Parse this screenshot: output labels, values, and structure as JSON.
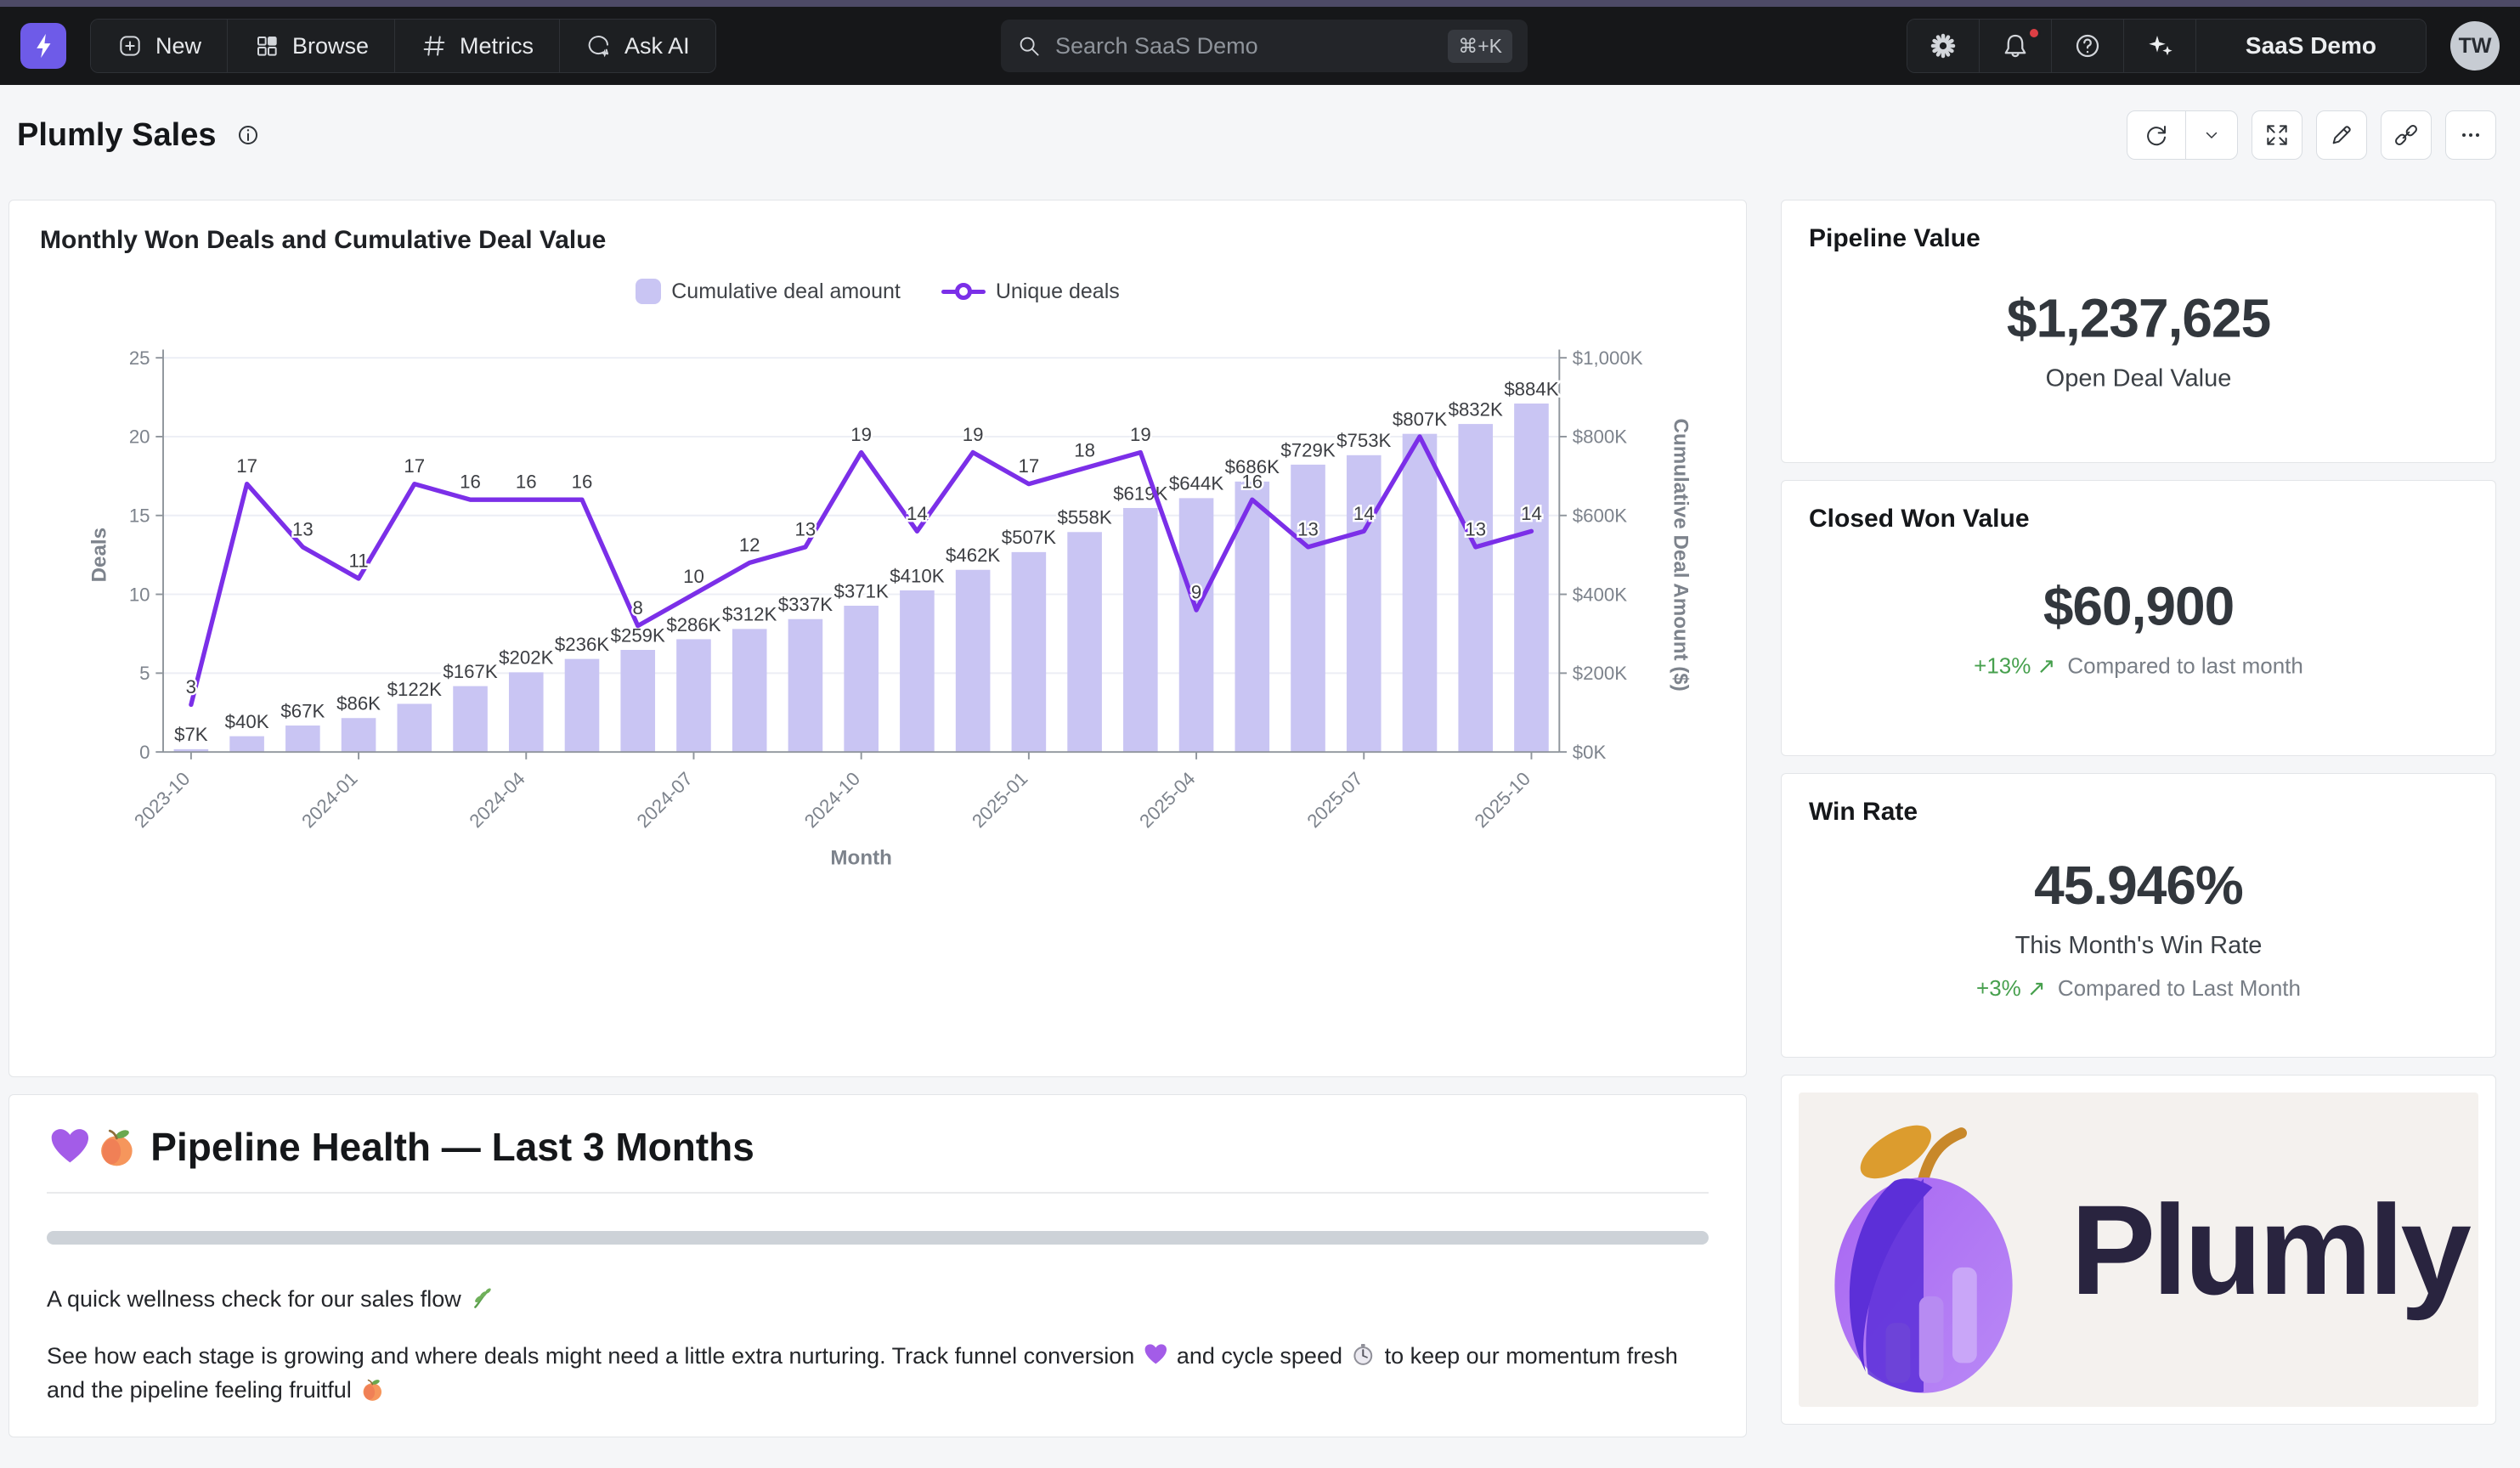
{
  "topbar": {
    "nav": [
      {
        "label": "New",
        "icon": "plus-square-icon"
      },
      {
        "label": "Browse",
        "icon": "grid-icon"
      },
      {
        "label": "Metrics",
        "icon": "hash-icon"
      },
      {
        "label": "Ask AI",
        "icon": "chat-sparkle-icon"
      }
    ],
    "search": {
      "placeholder": "Search SaaS Demo",
      "shortcut": "⌘+K"
    },
    "right": {
      "workspace": "SaaS Demo",
      "avatar": "TW"
    }
  },
  "header": {
    "title": "Plumly Sales"
  },
  "chart_tile": {
    "title": "Monthly Won Deals and Cumulative Deal Value",
    "legend": [
      {
        "label": "Cumulative deal amount",
        "type": "bar"
      },
      {
        "label": "Unique deals",
        "type": "line"
      }
    ]
  },
  "chart_data": {
    "type": "bar+line combo",
    "x": [
      "2023-10",
      "2023-11",
      "2023-12",
      "2024-01",
      "2024-02",
      "2024-03",
      "2024-04",
      "2024-05",
      "2024-06",
      "2024-07",
      "2024-08",
      "2024-09",
      "2024-10",
      "2024-11",
      "2024-12",
      "2025-01",
      "2025-02",
      "2025-03",
      "2025-04",
      "2025-05",
      "2025-06",
      "2025-07",
      "2025-08",
      "2025-09",
      "2025-10"
    ],
    "x_axis_label": "Month",
    "x_tick_labels": [
      "2023-10",
      "2024-01",
      "2024-04",
      "2024-07",
      "2024-10",
      "2025-01",
      "2025-04",
      "2025-07",
      "2025-10"
    ],
    "x_tick_every": 3,
    "series": [
      {
        "name": "Cumulative deal amount",
        "type": "bar",
        "axis": "right",
        "values_k": [
          7,
          40,
          67,
          86,
          122,
          167,
          202,
          236,
          259,
          286,
          312,
          337,
          371,
          410,
          462,
          507,
          558,
          619,
          644,
          686,
          729,
          753,
          807,
          832,
          884
        ],
        "labels": [
          "$7K",
          "$40K",
          "$67K",
          "$86K",
          "$122K",
          "$167K",
          "$202K",
          "$236K",
          "$259K",
          "$286K",
          "$312K",
          "$337K",
          "$371K",
          "$410K",
          "$462K",
          "$507K",
          "$558K",
          "$619K",
          "$644K",
          "$686K",
          "$729K",
          "$753K",
          "$807K",
          "$832K",
          "$884K"
        ]
      },
      {
        "name": "Unique deals",
        "type": "line",
        "axis": "left",
        "values": [
          3,
          17,
          13,
          11,
          17,
          16,
          16,
          16,
          8,
          10,
          12,
          13,
          19,
          14,
          19,
          17,
          18,
          19,
          9,
          16,
          13,
          14,
          20,
          13,
          14
        ],
        "hidden_label_indexes": [
          22
        ]
      }
    ],
    "left_axis": {
      "label": "Deals",
      "min": 0,
      "max": 25,
      "ticks": [
        0,
        5,
        10,
        15,
        20,
        25
      ]
    },
    "right_axis": {
      "label": "Cumulative Deal Amount ($)",
      "min": 0,
      "max_k": 1000,
      "ticks_k": [
        0,
        200,
        400,
        600,
        800,
        1000
      ],
      "tick_labels": [
        "$0K",
        "$200K",
        "$400K",
        "$600K",
        "$800K",
        "$1,000K"
      ]
    },
    "grid": true,
    "legend_position": "top",
    "colors": {
      "bar": "#c9c5f3",
      "line": "#7b2fe8"
    }
  },
  "kpis": [
    {
      "title": "Pipeline Value",
      "value": "$1,237,625",
      "subtitle": "Open Deal Value"
    },
    {
      "title": "Closed Won Value",
      "value": "$60,900",
      "delta": "+13% ↗",
      "delta_note": "Compared to last month"
    },
    {
      "title": "Win Rate",
      "value": "45.946%",
      "subtitle": "This Month's Win Rate",
      "delta": "+3% ↗",
      "delta_note": "Compared to Last Month"
    }
  ],
  "markdown_tile": {
    "heading_segments": [
      {
        "emoji": "purple-heart",
        "char": "💜"
      },
      {
        "emoji": "peach",
        "char": "🍑"
      },
      {
        "text": " Pipeline Health — Last 3 Months"
      }
    ],
    "paragraphs": [
      [
        {
          "text": "A quick wellness check for our sales flow "
        },
        {
          "emoji": "sprig",
          "char": "🌿"
        }
      ],
      [
        {
          "text": "See how each stage is growing and where deals might need a little extra nurturing. Track funnel conversion "
        },
        {
          "emoji": "purple-heart",
          "char": "💜"
        },
        {
          "text": " and cycle speed "
        },
        {
          "emoji": "stopwatch",
          "char": "⏱"
        },
        {
          "text": " to keep our momentum fresh and the pipeline feeling fruitful "
        },
        {
          "emoji": "peach",
          "char": "🍑"
        }
      ]
    ]
  },
  "logo_tile": {
    "brand": "Plumly"
  },
  "colors": {
    "accent": "#6e5be8",
    "line": "#7b2fe8",
    "bar": "#c9c5f3",
    "green": "#47a04e",
    "badge_red": "#dd3f45"
  }
}
